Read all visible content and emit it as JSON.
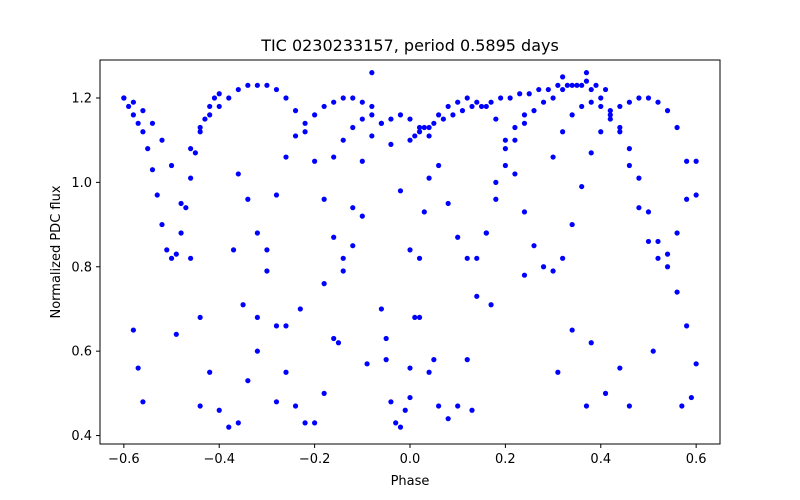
{
  "chart_data": {
    "type": "scatter",
    "title": "TIC 0230233157, period 0.5895 days",
    "xlabel": "Phase",
    "ylabel": "Normalized PDC flux",
    "xlim": [
      -0.65,
      0.65
    ],
    "ylim": [
      0.38,
      1.29
    ],
    "xticks": [
      -0.6,
      -0.4,
      -0.2,
      0.0,
      0.2,
      0.4,
      0.6
    ],
    "xtick_labels": [
      "−0.6",
      "−0.4",
      "−0.2",
      "0.0",
      "0.2",
      "0.4",
      "0.6"
    ],
    "yticks": [
      0.4,
      0.6,
      0.8,
      1.0,
      1.2
    ],
    "ytick_labels": [
      "0.4",
      "0.6",
      "0.8",
      "1.0",
      "1.2"
    ],
    "grid": false,
    "marker_color": "#0000ff",
    "series": [
      {
        "description_note": "phase-folded light curve showing deep eclipses and a shallower eclipse family",
        "points": [
          [
            -0.6,
            1.2
          ],
          [
            -0.59,
            1.18
          ],
          [
            -0.58,
            1.16
          ],
          [
            -0.57,
            1.14
          ],
          [
            -0.56,
            1.12
          ],
          [
            -0.55,
            1.08
          ],
          [
            -0.54,
            1.03
          ],
          [
            -0.53,
            0.97
          ],
          [
            -0.52,
            0.9
          ],
          [
            -0.51,
            0.84
          ],
          [
            -0.5,
            0.82
          ],
          [
            -0.49,
            0.83
          ],
          [
            -0.48,
            0.88
          ],
          [
            -0.47,
            0.94
          ],
          [
            -0.46,
            1.01
          ],
          [
            -0.45,
            1.07
          ],
          [
            -0.44,
            1.12
          ],
          [
            -0.43,
            1.15
          ],
          [
            -0.42,
            1.18
          ],
          [
            -0.41,
            1.2
          ],
          [
            -0.4,
            1.21
          ],
          [
            -0.6,
            1.2
          ],
          [
            -0.58,
            1.19
          ],
          [
            -0.56,
            1.17
          ],
          [
            -0.54,
            1.14
          ],
          [
            -0.52,
            1.1
          ],
          [
            -0.5,
            1.04
          ],
          [
            -0.48,
            0.95
          ],
          [
            -0.46,
            0.82
          ],
          [
            -0.44,
            0.68
          ],
          [
            -0.42,
            0.55
          ],
          [
            -0.4,
            0.46
          ],
          [
            -0.38,
            0.42
          ],
          [
            -0.36,
            0.43
          ],
          [
            -0.34,
            0.53
          ],
          [
            -0.32,
            0.68
          ],
          [
            -0.3,
            0.84
          ],
          [
            -0.28,
            0.97
          ],
          [
            -0.26,
            1.06
          ],
          [
            -0.24,
            1.11
          ],
          [
            -0.22,
            1.14
          ],
          [
            -0.2,
            1.16
          ],
          [
            -0.18,
            1.18
          ],
          [
            -0.16,
            1.19
          ],
          [
            -0.14,
            1.2
          ],
          [
            -0.12,
            1.2
          ],
          [
            -0.1,
            1.19
          ],
          [
            -0.08,
            1.18
          ],
          [
            -0.46,
            1.08
          ],
          [
            -0.44,
            1.13
          ],
          [
            -0.42,
            1.16
          ],
          [
            -0.4,
            1.18
          ],
          [
            -0.38,
            1.2
          ],
          [
            -0.36,
            1.22
          ],
          [
            -0.34,
            1.23
          ],
          [
            -0.32,
            1.23
          ],
          [
            -0.3,
            1.23
          ],
          [
            -0.28,
            1.22
          ],
          [
            -0.26,
            1.2
          ],
          [
            -0.24,
            1.17
          ],
          [
            -0.22,
            1.12
          ],
          [
            -0.2,
            1.05
          ],
          [
            -0.18,
            0.96
          ],
          [
            -0.16,
            0.87
          ],
          [
            -0.14,
            0.82
          ],
          [
            -0.12,
            0.85
          ],
          [
            -0.1,
            0.92
          ],
          [
            -0.36,
            1.02
          ],
          [
            -0.34,
            0.96
          ],
          [
            -0.32,
            0.88
          ],
          [
            -0.3,
            0.79
          ],
          [
            -0.28,
            0.66
          ],
          [
            -0.26,
            0.55
          ],
          [
            -0.24,
            0.47
          ],
          [
            -0.22,
            0.43
          ],
          [
            -0.2,
            0.43
          ],
          [
            -0.18,
            0.5
          ],
          [
            -0.16,
            0.63
          ],
          [
            -0.14,
            0.79
          ],
          [
            -0.12,
            0.94
          ],
          [
            -0.1,
            1.05
          ],
          [
            -0.08,
            1.11
          ],
          [
            -0.06,
            1.14
          ],
          [
            -0.04,
            1.15
          ],
          [
            -0.02,
            1.16
          ],
          [
            0.0,
            1.15
          ],
          [
            0.02,
            1.13
          ],
          [
            0.04,
            1.11
          ],
          [
            -0.16,
            1.06
          ],
          [
            -0.14,
            1.1
          ],
          [
            -0.12,
            1.13
          ],
          [
            -0.1,
            1.15
          ],
          [
            -0.08,
            1.16
          ],
          [
            -0.06,
            1.14
          ],
          [
            -0.04,
            1.09
          ],
          [
            -0.02,
            0.98
          ],
          [
            0.0,
            0.84
          ],
          [
            0.02,
            0.68
          ],
          [
            0.04,
            0.55
          ],
          [
            0.06,
            0.47
          ],
          [
            0.08,
            0.44
          ],
          [
            0.1,
            0.47
          ],
          [
            0.12,
            0.58
          ],
          [
            0.14,
            0.73
          ],
          [
            0.16,
            0.88
          ],
          [
            0.18,
            1.0
          ],
          [
            0.2,
            1.08
          ],
          [
            0.22,
            1.13
          ],
          [
            0.24,
            1.16
          ],
          [
            -0.06,
            0.7
          ],
          [
            -0.05,
            0.58
          ],
          [
            -0.04,
            0.48
          ],
          [
            -0.03,
            0.43
          ],
          [
            -0.02,
            0.42
          ],
          [
            -0.01,
            0.46
          ],
          [
            0.0,
            0.56
          ],
          [
            0.01,
            0.68
          ],
          [
            0.02,
            0.82
          ],
          [
            0.03,
            0.93
          ],
          [
            0.04,
            1.01
          ],
          [
            0.04,
            1.13
          ],
          [
            0.06,
            1.16
          ],
          [
            0.08,
            1.18
          ],
          [
            0.1,
            1.19
          ],
          [
            0.12,
            1.2
          ],
          [
            0.14,
            1.19
          ],
          [
            0.16,
            1.18
          ],
          [
            0.18,
            1.15
          ],
          [
            0.2,
            1.1
          ],
          [
            0.22,
            1.02
          ],
          [
            0.24,
            0.93
          ],
          [
            0.26,
            0.85
          ],
          [
            0.28,
            0.8
          ],
          [
            0.3,
            0.79
          ],
          [
            0.32,
            0.82
          ],
          [
            0.34,
            0.9
          ],
          [
            0.36,
            0.99
          ],
          [
            0.38,
            1.07
          ],
          [
            0.4,
            1.12
          ],
          [
            0.42,
            1.15
          ],
          [
            0.44,
            1.18
          ],
          [
            0.46,
            1.19
          ],
          [
            0.48,
            1.2
          ],
          [
            0.5,
            1.2
          ],
          [
            0.52,
            1.19
          ],
          [
            0.54,
            1.17
          ],
          [
            0.56,
            1.13
          ],
          [
            0.58,
            1.05
          ],
          [
            0.6,
            0.97
          ],
          [
            0.06,
            1.04
          ],
          [
            0.08,
            0.95
          ],
          [
            0.1,
            0.87
          ],
          [
            0.12,
            0.82
          ],
          [
            0.14,
            0.82
          ],
          [
            0.16,
            0.88
          ],
          [
            0.18,
            0.96
          ],
          [
            0.2,
            1.04
          ],
          [
            0.22,
            1.1
          ],
          [
            0.24,
            1.14
          ],
          [
            0.26,
            1.17
          ],
          [
            0.28,
            1.19
          ],
          [
            0.3,
            1.2
          ],
          [
            0.32,
            1.22
          ],
          [
            0.34,
            1.23
          ],
          [
            0.36,
            1.23
          ],
          [
            0.38,
            1.22
          ],
          [
            0.4,
            1.2
          ],
          [
            0.42,
            1.17
          ],
          [
            0.44,
            1.12
          ],
          [
            0.46,
            1.04
          ],
          [
            0.48,
            0.94
          ],
          [
            0.5,
            0.86
          ],
          [
            0.52,
            0.82
          ],
          [
            0.54,
            0.83
          ],
          [
            0.56,
            0.88
          ],
          [
            0.58,
            0.96
          ],
          [
            0.6,
            1.05
          ],
          [
            0.3,
            1.06
          ],
          [
            0.32,
            1.12
          ],
          [
            0.34,
            1.16
          ],
          [
            0.36,
            1.18
          ],
          [
            0.38,
            1.19
          ],
          [
            0.4,
            1.18
          ],
          [
            0.42,
            1.16
          ],
          [
            0.44,
            1.13
          ],
          [
            0.46,
            1.08
          ],
          [
            0.48,
            1.01
          ],
          [
            0.5,
            0.93
          ],
          [
            0.52,
            0.86
          ],
          [
            0.54,
            0.8
          ],
          [
            0.56,
            0.74
          ],
          [
            0.58,
            0.66
          ],
          [
            0.6,
            0.57
          ],
          [
            0.0,
            1.1
          ],
          [
            0.01,
            1.11
          ],
          [
            0.02,
            1.12
          ],
          [
            0.03,
            1.13
          ],
          [
            0.05,
            1.14
          ],
          [
            0.07,
            1.15
          ],
          [
            0.09,
            1.16
          ],
          [
            0.11,
            1.17
          ],
          [
            0.13,
            1.18
          ],
          [
            0.15,
            1.18
          ],
          [
            0.17,
            1.19
          ],
          [
            0.19,
            1.2
          ],
          [
            0.21,
            1.2
          ],
          [
            0.23,
            1.21
          ],
          [
            0.25,
            1.21
          ],
          [
            0.27,
            1.22
          ],
          [
            0.29,
            1.22
          ],
          [
            0.31,
            1.23
          ],
          [
            0.33,
            1.23
          ],
          [
            0.35,
            1.23
          ],
          [
            0.37,
            1.24
          ],
          [
            0.39,
            1.23
          ],
          [
            0.41,
            1.22
          ],
          [
            -0.58,
            0.65
          ],
          [
            -0.57,
            0.56
          ],
          [
            -0.56,
            0.48
          ],
          [
            -0.49,
            0.64
          ],
          [
            -0.44,
            0.47
          ],
          [
            -0.37,
            0.84
          ],
          [
            -0.35,
            0.71
          ],
          [
            -0.32,
            0.6
          ],
          [
            -0.28,
            0.48
          ],
          [
            -0.26,
            0.66
          ],
          [
            -0.23,
            0.7
          ],
          [
            -0.18,
            0.76
          ],
          [
            -0.15,
            0.62
          ],
          [
            -0.09,
            0.57
          ],
          [
            -0.05,
            0.63
          ],
          [
            0.0,
            0.49
          ],
          [
            0.05,
            0.58
          ],
          [
            0.13,
            0.46
          ],
          [
            0.17,
            0.71
          ],
          [
            0.24,
            0.78
          ],
          [
            0.31,
            0.55
          ],
          [
            0.34,
            0.65
          ],
          [
            0.37,
            0.47
          ],
          [
            0.38,
            0.62
          ],
          [
            0.41,
            0.5
          ],
          [
            0.44,
            0.56
          ],
          [
            0.46,
            0.47
          ],
          [
            0.51,
            0.6
          ],
          [
            0.57,
            0.47
          ],
          [
            0.59,
            0.49
          ],
          [
            -0.08,
            1.26
          ],
          [
            0.37,
            1.26
          ],
          [
            0.32,
            1.25
          ]
        ]
      }
    ]
  }
}
